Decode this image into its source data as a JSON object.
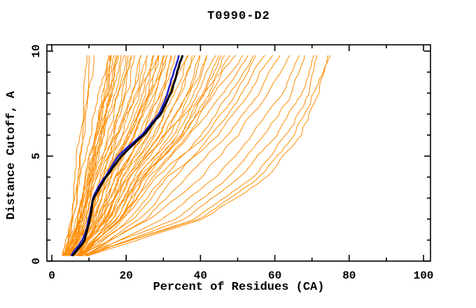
{
  "window": {
    "background": "#ffffff"
  },
  "chart_data": {
    "type": "line",
    "title": "T0990-D2",
    "xlabel": "Percent of Residues (CA)",
    "ylabel": "Distance Cutoff, A",
    "xlim": [
      -1.3,
      101.9
    ],
    "ylim": [
      -0.3,
      10.3
    ],
    "grid": false,
    "legend": "none",
    "axis_color": "#000000",
    "background_color": "#ffffff",
    "x_ticks": {
      "major": [
        0,
        20,
        40,
        60,
        80,
        100
      ],
      "minor_step": 10,
      "labels": [
        "0",
        "20",
        "40",
        "60",
        "80",
        "100"
      ]
    },
    "y_ticks": {
      "major": [
        0,
        5,
        10
      ],
      "minor_step": 1,
      "labels": [
        "0",
        "5",
        "10"
      ]
    },
    "series_colors": {
      "server_models": "#ff8c00",
      "best_black": "#000000",
      "best_blue": "#2222cc"
    },
    "curve_cutoffs": [
      0.25,
      2,
      4,
      6,
      8,
      9.8
    ],
    "server_models": [
      [
        3.0,
        5.2,
        6.3,
        7.5,
        8.6,
        9.3
      ],
      [
        3.4,
        5.8,
        7.0,
        8.2,
        9.4,
        10.2
      ],
      [
        2.8,
        5.6,
        7.1,
        8.8,
        10.2,
        11.2
      ],
      [
        3.8,
        6.9,
        9.1,
        11.6,
        13.7,
        15.2
      ],
      [
        3.1,
        7.3,
        9.7,
        12.2,
        14.3,
        15.9
      ],
      [
        4.1,
        7.7,
        10.3,
        12.8,
        15.0,
        16.6
      ],
      [
        3.5,
        8.1,
        10.9,
        13.4,
        15.7,
        17.3
      ],
      [
        4.3,
        8.5,
        11.5,
        14.0,
        16.4,
        18.0
      ],
      [
        3.2,
        6.0,
        8.0,
        10.5,
        13.0,
        15.5
      ],
      [
        4.6,
        7.4,
        9.4,
        11.6,
        14.2,
        16.2
      ],
      [
        3.0,
        6.6,
        9.0,
        11.8,
        14.8,
        17.0
      ],
      [
        5.0,
        8.2,
        10.4,
        12.8,
        15.6,
        17.8
      ],
      [
        3.6,
        7.0,
        9.8,
        13.0,
        16.2,
        18.5
      ],
      [
        4.8,
        8.6,
        11.2,
        14.0,
        17.0,
        19.2
      ],
      [
        3.3,
        7.8,
        10.8,
        14.5,
        17.8,
        20.0
      ],
      [
        5.4,
        9.0,
        12.0,
        15.2,
        18.5,
        20.8
      ],
      [
        3.9,
        8.3,
        11.6,
        15.8,
        19.2,
        21.5
      ],
      [
        4.4,
        9.4,
        12.8,
        16.4,
        19.9,
        22.2
      ],
      [
        3.4,
        8.8,
        12.2,
        17.0,
        20.6,
        23.0
      ],
      [
        5.6,
        10.0,
        13.6,
        17.6,
        21.3,
        23.8
      ],
      [
        4.0,
        9.6,
        13.0,
        18.2,
        22.0,
        24.5
      ],
      [
        5.2,
        10.6,
        14.4,
        18.8,
        22.7,
        25.2
      ],
      [
        3.7,
        10.2,
        13.8,
        19.4,
        23.4,
        26.0
      ],
      [
        5.8,
        11.2,
        15.2,
        20.0,
        24.1,
        26.8
      ],
      [
        4.2,
        10.8,
        14.6,
        20.6,
        24.8,
        27.5
      ],
      [
        6.0,
        11.8,
        16.0,
        21.2,
        25.5,
        28.2
      ],
      [
        4.5,
        11.4,
        15.4,
        21.8,
        26.2,
        29.0
      ],
      [
        6.2,
        12.4,
        16.8,
        22.4,
        26.9,
        29.8
      ],
      [
        4.7,
        12.0,
        16.2,
        23.0,
        27.6,
        30.5
      ],
      [
        6.4,
        13.0,
        17.6,
        23.6,
        28.3,
        31.2
      ],
      [
        4.9,
        12.6,
        17.0,
        24.2,
        29.0,
        32.0
      ],
      [
        6.6,
        13.6,
        18.4,
        24.8,
        29.7,
        32.8
      ],
      [
        5.1,
        13.2,
        17.8,
        25.4,
        30.4,
        33.5
      ],
      [
        6.8,
        14.2,
        19.2,
        26.0,
        31.1,
        34.2
      ],
      [
        5.3,
        13.8,
        18.6,
        26.6,
        31.8,
        35.0
      ],
      [
        7.0,
        14.8,
        20.0,
        27.2,
        32.5,
        35.8
      ],
      [
        5.5,
        14.4,
        19.4,
        27.8,
        33.2,
        36.5
      ],
      [
        7.2,
        15.6,
        21.0,
        28.6,
        34.1,
        37.5
      ],
      [
        5.7,
        15.0,
        20.4,
        29.4,
        35.0,
        38.5
      ],
      [
        7.4,
        16.4,
        22.0,
        30.2,
        35.9,
        39.5
      ],
      [
        5.9,
        15.8,
        21.4,
        31.0,
        36.8,
        40.5
      ],
      [
        7.6,
        17.2,
        23.0,
        31.8,
        37.7,
        41.5
      ],
      [
        6.1,
        16.6,
        22.4,
        32.6,
        38.6,
        42.5
      ],
      [
        7.8,
        18.0,
        24.0,
        33.4,
        39.5,
        43.5
      ],
      [
        6.3,
        17.4,
        23.4,
        34.2,
        40.4,
        44.5
      ],
      [
        8.0,
        18.8,
        25.0,
        35.0,
        41.3,
        45.5
      ],
      [
        6.5,
        18.2,
        24.4,
        35.8,
        42.2,
        46.5
      ],
      [
        8.2,
        19.6,
        26.0,
        36.6,
        43.1,
        47.5
      ],
      [
        4.1,
        7.6,
        11.5,
        16.8,
        23.5,
        28.8
      ],
      [
        5.0,
        9.2,
        14.0,
        20.4,
        27.0,
        31.6
      ],
      [
        6.7,
        13.4,
        21.0,
        30.0,
        41.0,
        49.5
      ],
      [
        8.4,
        16.0,
        24.6,
        34.6,
        44.0,
        51.0
      ],
      [
        6.9,
        18.6,
        27.0,
        37.0,
        46.0,
        52.5
      ],
      [
        8.6,
        21.0,
        30.0,
        39.8,
        47.8,
        54.0
      ],
      [
        7.1,
        19.2,
        28.4,
        41.0,
        49.6,
        55.5
      ],
      [
        8.8,
        23.0,
        33.0,
        43.0,
        51.2,
        57.0
      ],
      [
        7.3,
        21.8,
        31.4,
        44.6,
        53.4,
        59.0
      ],
      [
        9.0,
        25.0,
        36.0,
        47.0,
        56.0,
        61.5
      ],
      [
        7.5,
        27.0,
        40.0,
        50.0,
        58.5,
        63.5
      ],
      [
        9.2,
        30.0,
        44.0,
        54.0,
        61.5,
        66.0
      ],
      [
        7.7,
        33.0,
        47.5,
        57.5,
        64.5,
        68.5
      ],
      [
        9.4,
        36.0,
        51.0,
        60.5,
        67.0,
        70.5
      ],
      [
        7.9,
        38.5,
        54.0,
        63.0,
        69.0,
        72.0
      ],
      [
        9.6,
        41.0,
        57.5,
        66.5,
        71.5,
        73.8
      ],
      [
        8.1,
        39.5,
        56.0,
        65.5,
        70.8,
        74.6
      ]
    ],
    "highlight_cutoffs": [
      0.25,
      1,
      2,
      3,
      4,
      5,
      6,
      7,
      8,
      9,
      9.8
    ],
    "best_black": [
      5.5,
      8.8,
      10.4,
      11.4,
      15.0,
      18.8,
      25.0,
      29.5,
      32.0,
      33.6,
      35.0
    ],
    "best_blue": [
      5.2,
      8.4,
      10.0,
      11.0,
      14.4,
      18.2,
      24.4,
      29.0,
      31.3,
      33.0,
      34.2
    ]
  }
}
